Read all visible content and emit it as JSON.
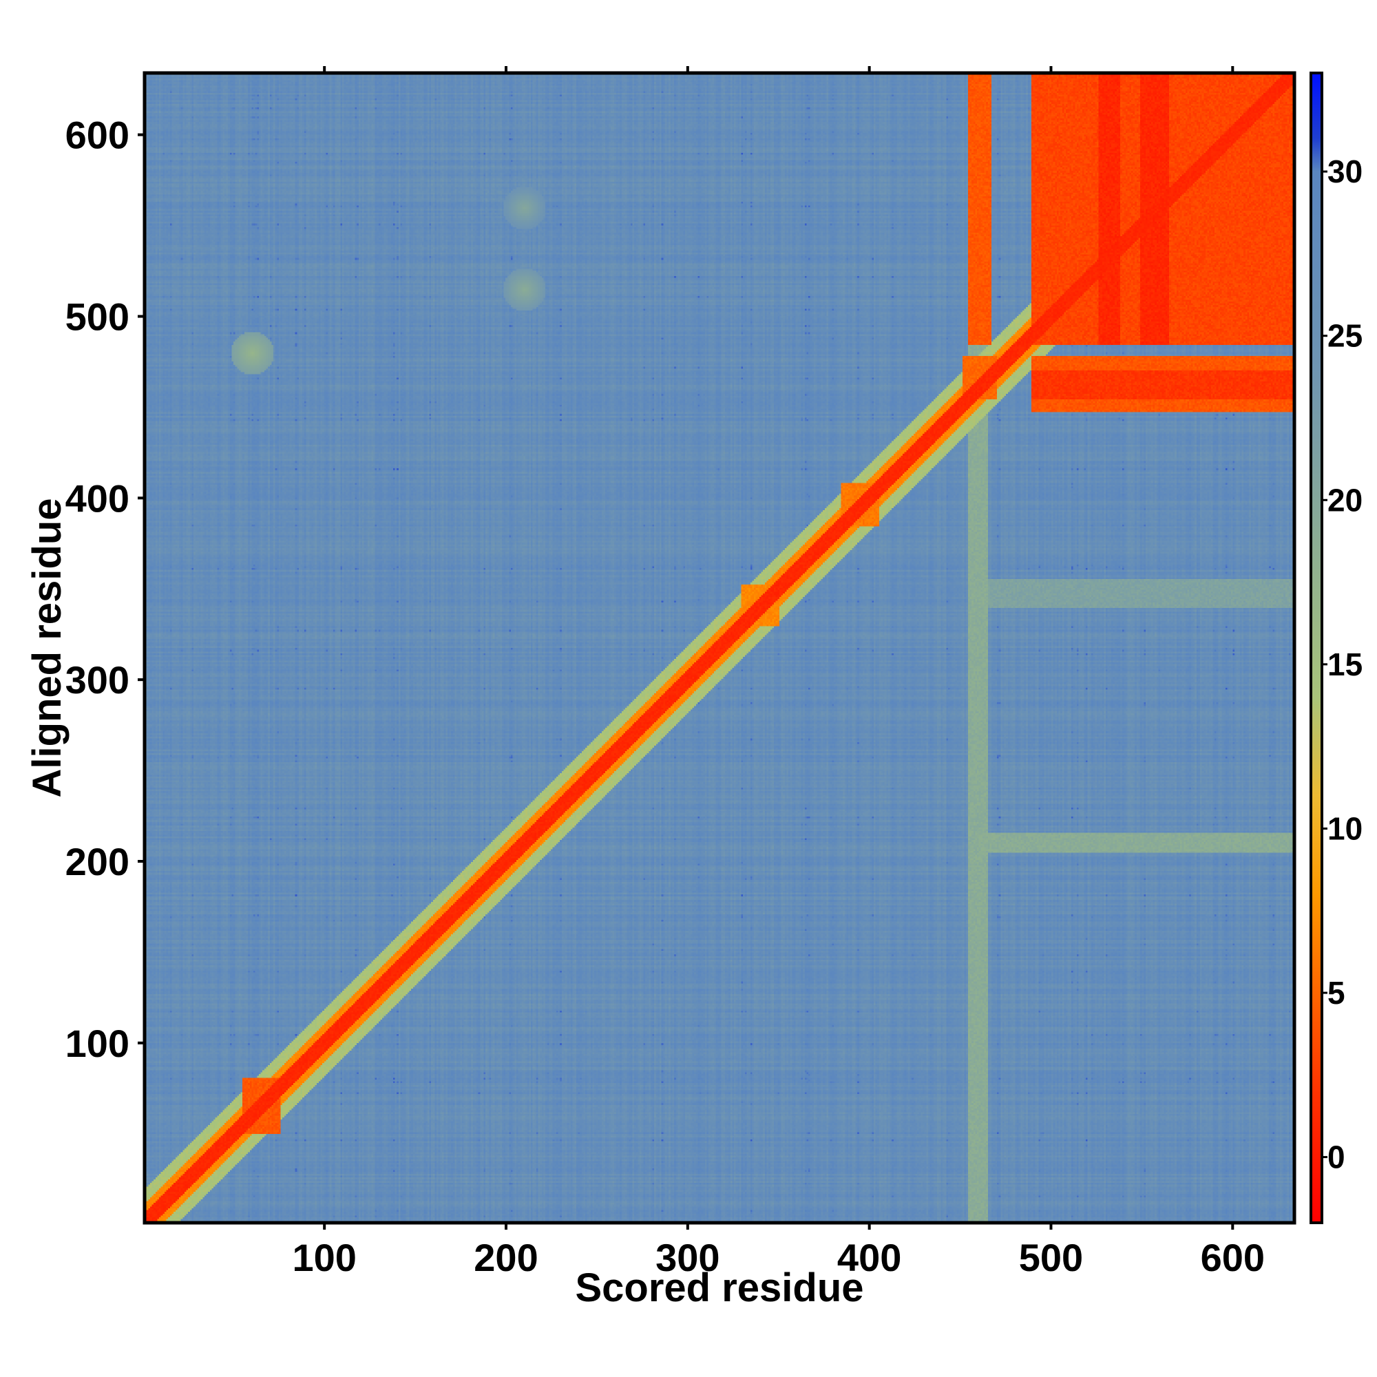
{
  "chart_data": {
    "type": "heatmap",
    "title": "",
    "xlabel": "Scored residue",
    "ylabel": "Aligned residue",
    "xlim": [
      1,
      634
    ],
    "ylim": [
      1,
      634
    ],
    "x_ticks": [
      100,
      200,
      300,
      400,
      500,
      600
    ],
    "y_ticks": [
      100,
      200,
      300,
      400,
      500,
      600
    ],
    "x_tick_labels": [
      "100",
      "200",
      "300",
      "400",
      "500",
      "600"
    ],
    "y_tick_labels": [
      "100",
      "200",
      "300",
      "400",
      "500",
      "600"
    ],
    "grid": false,
    "legend": "colorbar-right",
    "colorbar": {
      "range": [
        -2,
        33
      ],
      "ticks": [
        0,
        5,
        10,
        15,
        20,
        25,
        30
      ],
      "tick_labels": [
        "0",
        "5",
        "10",
        "15",
        "20",
        "25",
        "30"
      ],
      "stops": [
        {
          "value": -2,
          "color": "#ff0000"
        },
        {
          "value": 2,
          "color": "#ff3300"
        },
        {
          "value": 5,
          "color": "#ff6600"
        },
        {
          "value": 8,
          "color": "#ff9900"
        },
        {
          "value": 11,
          "color": "#eebb33"
        },
        {
          "value": 14,
          "color": "#a9c47a"
        },
        {
          "value": 18,
          "color": "#90b090"
        },
        {
          "value": 24,
          "color": "#6f95b2"
        },
        {
          "value": 30,
          "color": "#5a86c0"
        },
        {
          "value": 31,
          "color": "#1f3fd0"
        },
        {
          "value": 33,
          "color": "#0010ff"
        }
      ]
    },
    "background_value": 27,
    "matrix_regions": [
      {
        "kind": "diagonal",
        "value": 1,
        "width": 5
      },
      {
        "kind": "diagonal",
        "value": 7,
        "width": 10
      },
      {
        "kind": "diagonal",
        "value": 14,
        "width": 18
      },
      {
        "kind": "block",
        "x": [
          490,
          634
        ],
        "y": [
          485,
          634
        ],
        "value": 3
      },
      {
        "kind": "block",
        "x": [
          490,
          634
        ],
        "y": [
          448,
          478
        ],
        "value": 4
      },
      {
        "kind": "block",
        "x": [
          455,
          467
        ],
        "y": [
          485,
          634
        ],
        "value": 4
      },
      {
        "kind": "block",
        "x": [
          452,
          470
        ],
        "y": [
          455,
          478
        ],
        "value": 5
      },
      {
        "kind": "block",
        "x": [
          55,
          75
        ],
        "y": [
          50,
          80
        ],
        "value": 4
      },
      {
        "kind": "block",
        "x": [
          385,
          405
        ],
        "y": [
          385,
          408
        ],
        "value": 6
      },
      {
        "kind": "block",
        "x": [
          330,
          350
        ],
        "y": [
          330,
          352
        ],
        "value": 7
      },
      {
        "kind": "block",
        "x": [
          527,
          538
        ],
        "y": [
          485,
          634
        ],
        "value": 1
      },
      {
        "kind": "block",
        "x": [
          550,
          565
        ],
        "y": [
          485,
          634
        ],
        "value": 1
      },
      {
        "kind": "block",
        "x": [
          490,
          634
        ],
        "y": [
          455,
          470
        ],
        "value": 2
      },
      {
        "kind": "band-x",
        "x": [
          455,
          465
        ],
        "value": 19
      },
      {
        "kind": "band-y",
        "y": [
          205,
          215
        ],
        "value": 19
      },
      {
        "kind": "band-y",
        "y": [
          340,
          355
        ],
        "value": 21
      },
      {
        "kind": "spot",
        "x": 60,
        "y": 480,
        "value": 17
      },
      {
        "kind": "spot",
        "x": 210,
        "y": 515,
        "value": 19
      },
      {
        "kind": "spot",
        "x": 210,
        "y": 560,
        "value": 20
      }
    ]
  }
}
